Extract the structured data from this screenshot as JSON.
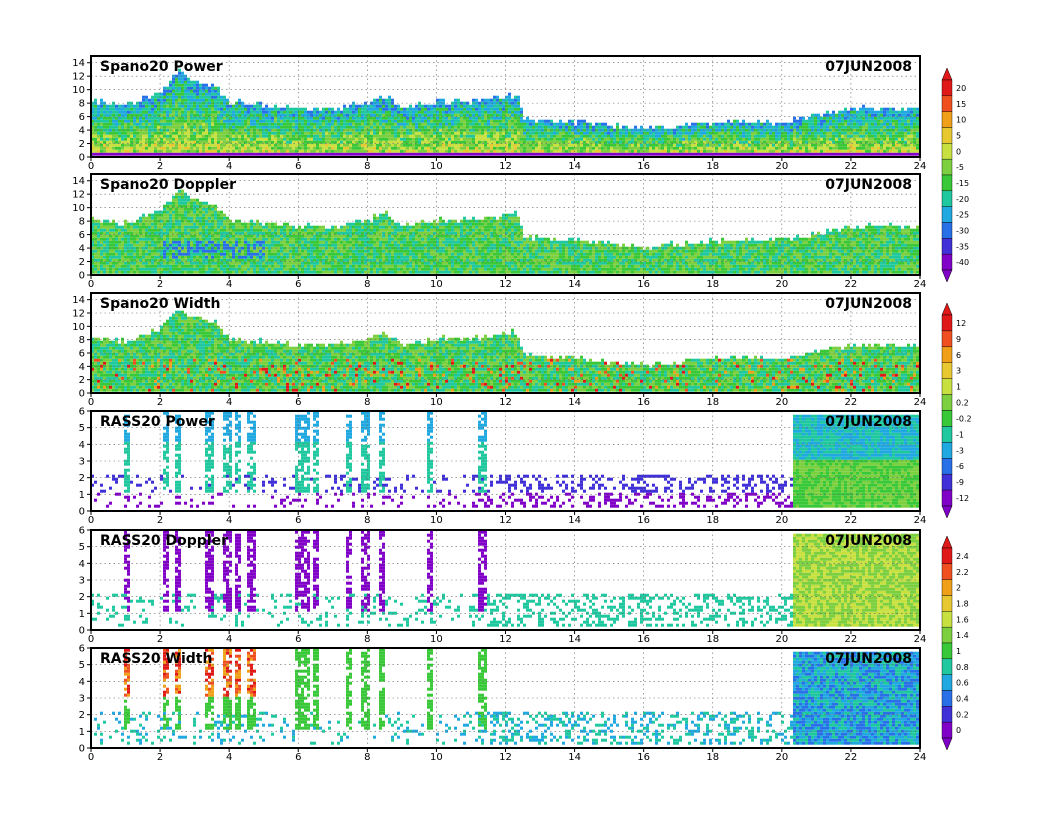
{
  "chart_data": [
    {
      "type": "heatmap",
      "title": "Spano20 Power",
      "date": "07JUN2008",
      "x_ticks": [
        "0",
        "2",
        "4",
        "6",
        "8",
        "10",
        "12",
        "14",
        "16",
        "18",
        "20",
        "22",
        "24"
      ],
      "y_ticks": [
        "0",
        "2",
        "4",
        "6",
        "8",
        "10",
        "12",
        "14"
      ],
      "xlim": [
        0,
        24
      ],
      "ylim": [
        0,
        15
      ],
      "grid": true,
      "colorbar": "power_doppler",
      "top_profile": [
        [
          0,
          8
        ],
        [
          1,
          7.5
        ],
        [
          2,
          9.5
        ],
        [
          2.5,
          12.5
        ],
        [
          3,
          11
        ],
        [
          3.5,
          10.5
        ],
        [
          4,
          8
        ],
        [
          5,
          7.5
        ],
        [
          6,
          7
        ],
        [
          7,
          7
        ],
        [
          8,
          8
        ],
        [
          8.5,
          9
        ],
        [
          9,
          7
        ],
        [
          10,
          8
        ],
        [
          11,
          8
        ],
        [
          12.3,
          9
        ],
        [
          12.5,
          5.5
        ],
        [
          14,
          5
        ],
        [
          16,
          4
        ],
        [
          18,
          5
        ],
        [
          19,
          5
        ],
        [
          20,
          5
        ],
        [
          21,
          6
        ],
        [
          22,
          7
        ],
        [
          24,
          7
        ]
      ]
    },
    {
      "type": "heatmap",
      "title": "Spano20 Doppler",
      "date": "07JUN2008",
      "x_ticks": [
        "0",
        "2",
        "4",
        "6",
        "8",
        "10",
        "12",
        "14",
        "16",
        "18",
        "20",
        "22",
        "24"
      ],
      "y_ticks": [
        "0",
        "2",
        "4",
        "6",
        "8",
        "10",
        "12",
        "14"
      ],
      "xlim": [
        0,
        24
      ],
      "ylim": [
        0,
        15
      ],
      "grid": true,
      "colorbar": "power_doppler",
      "top_profile": [
        [
          0,
          8
        ],
        [
          1,
          7.5
        ],
        [
          2,
          9.5
        ],
        [
          2.5,
          12.5
        ],
        [
          3,
          11
        ],
        [
          3.5,
          10.5
        ],
        [
          4,
          8
        ],
        [
          5,
          7.5
        ],
        [
          6,
          7
        ],
        [
          7,
          7
        ],
        [
          8,
          8
        ],
        [
          8.5,
          9
        ],
        [
          9,
          7
        ],
        [
          10,
          8
        ],
        [
          11,
          8
        ],
        [
          12.3,
          9
        ],
        [
          12.5,
          5.5
        ],
        [
          14,
          5
        ],
        [
          16,
          4
        ],
        [
          18,
          5
        ],
        [
          19,
          5
        ],
        [
          20,
          5
        ],
        [
          21,
          6
        ],
        [
          22,
          7
        ],
        [
          24,
          7
        ]
      ]
    },
    {
      "type": "heatmap",
      "title": "Spano20 Width",
      "date": "07JUN2008",
      "x_ticks": [
        "0",
        "2",
        "4",
        "6",
        "8",
        "10",
        "12",
        "14",
        "16",
        "18",
        "20",
        "22",
        "24"
      ],
      "y_ticks": [
        "0",
        "2",
        "4",
        "6",
        "8",
        "10",
        "12",
        "14"
      ],
      "xlim": [
        0,
        24
      ],
      "ylim": [
        0,
        15
      ],
      "grid": true,
      "colorbar": "width",
      "top_profile": [
        [
          0,
          8
        ],
        [
          1,
          7.5
        ],
        [
          2,
          9.5
        ],
        [
          2.5,
          12.5
        ],
        [
          3,
          11
        ],
        [
          3.5,
          10.5
        ],
        [
          4,
          8
        ],
        [
          5,
          7.5
        ],
        [
          6,
          7
        ],
        [
          7,
          7
        ],
        [
          8,
          8
        ],
        [
          8.5,
          9
        ],
        [
          9,
          7
        ],
        [
          10,
          8
        ],
        [
          11,
          8
        ],
        [
          12.3,
          9
        ],
        [
          12.5,
          5.5
        ],
        [
          14,
          5
        ],
        [
          16,
          4
        ],
        [
          18,
          5
        ],
        [
          19,
          5
        ],
        [
          20,
          5
        ],
        [
          21,
          6
        ],
        [
          22,
          7
        ],
        [
          24,
          7
        ]
      ]
    },
    {
      "type": "heatmap",
      "title": "RASS20 Power",
      "date": "07JUN2008",
      "x_ticks": [
        "0",
        "2",
        "4",
        "6",
        "8",
        "10",
        "12",
        "14",
        "16",
        "18",
        "20",
        "22",
        "24"
      ],
      "y_ticks": [
        "0",
        "1",
        "2",
        "3",
        "4",
        "5",
        "6"
      ],
      "xlim": [
        0,
        24
      ],
      "ylim": [
        0,
        6
      ],
      "grid": true,
      "colorbar": "rass_power"
    },
    {
      "type": "heatmap",
      "title": "RASS20 Doppler",
      "date": "07JUN2008",
      "x_ticks": [
        "0",
        "2",
        "4",
        "6",
        "8",
        "10",
        "12",
        "14",
        "16",
        "18",
        "20",
        "22",
        "24"
      ],
      "y_ticks": [
        "0",
        "1",
        "2",
        "3",
        "4",
        "5",
        "6"
      ],
      "xlim": [
        0,
        24
      ],
      "ylim": [
        0,
        6
      ],
      "grid": true,
      "colorbar": null
    },
    {
      "type": "heatmap",
      "title": "RASS20 Width",
      "date": "07JUN2008",
      "x_ticks": [
        "0",
        "2",
        "4",
        "6",
        "8",
        "10",
        "12",
        "14",
        "16",
        "18",
        "20",
        "22",
        "24"
      ],
      "y_ticks": [
        "0",
        "1",
        "2",
        "3",
        "4",
        "5",
        "6"
      ],
      "xlim": [
        0,
        24
      ],
      "ylim": [
        0,
        6
      ],
      "grid": true,
      "colorbar": "rass_width"
    }
  ],
  "colorbars": {
    "power_doppler": {
      "labels": [
        "20",
        "15",
        "10",
        "5",
        "0",
        "-5",
        "-15",
        "-20",
        "-25",
        "-30",
        "-35",
        "-40"
      ],
      "colors": [
        "#e01818",
        "#f05020",
        "#f0a018",
        "#e8c830",
        "#c8e040",
        "#7cd040",
        "#38c838",
        "#20c8a0",
        "#20a8e0",
        "#2870e8",
        "#4030d8",
        "#8000c8"
      ]
    },
    "width": {
      "labels": [
        "12",
        "9",
        "6",
        "3",
        "1",
        "0.2",
        "-0.2",
        "-1",
        "-3",
        "-6",
        "-9",
        "-12"
      ],
      "colors": [
        "#e01818",
        "#f05020",
        "#f0a018",
        "#e8c830",
        "#c8e040",
        "#7cd040",
        "#38c838",
        "#20c8a0",
        "#20a8e0",
        "#2870e8",
        "#4030d8",
        "#8000c8"
      ]
    },
    "rass_power": {
      "labels": [
        "2.4",
        "2.2",
        "2",
        "1.8",
        "1.6",
        "1.4",
        "1",
        "0.8",
        "0.6",
        "0.4",
        "0.2",
        "0"
      ],
      "colors": [
        "#e01818",
        "#f05020",
        "#f0a018",
        "#e8c830",
        "#c8e040",
        "#7cd040",
        "#38c838",
        "#20c8a0",
        "#20a8e0",
        "#2870e8",
        "#4030d8",
        "#8000c8"
      ]
    },
    "rass_width": {
      "labels": [
        "2.4",
        "2.2",
        "2",
        "1.8",
        "1.6",
        "1.4",
        "1",
        "0.8",
        "0.6",
        "0.4",
        "0.2",
        "0"
      ],
      "colors": [
        "#e01818",
        "#f05020",
        "#f0a018",
        "#e8c830",
        "#c8e040",
        "#7cd040",
        "#38c838",
        "#20c8a0",
        "#20a8e0",
        "#2870e8",
        "#4030d8",
        "#8000c8"
      ]
    }
  }
}
